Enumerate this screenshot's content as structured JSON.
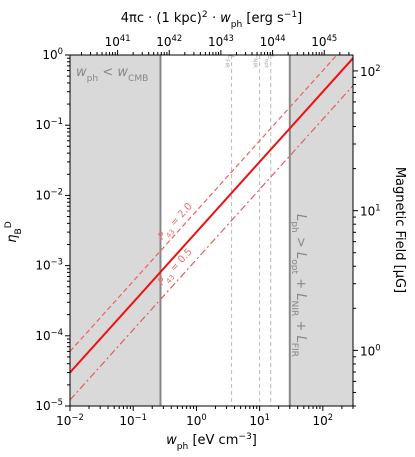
{
  "chart_data": {
    "type": "line",
    "x_axis": {
      "label_main": "w",
      "label_sub": "ph",
      "label_units": " [eV cm",
      "label_exp": "−3",
      "label_close": "]",
      "scale": "log",
      "range": [
        0.01,
        300
      ],
      "ticks": [
        {
          "value": 0.01,
          "base": "10",
          "exp": "−2"
        },
        {
          "value": 0.1,
          "base": "10",
          "exp": "−1"
        },
        {
          "value": 1,
          "base": "10",
          "exp": "0"
        },
        {
          "value": 10,
          "base": "10",
          "exp": "1"
        },
        {
          "value": 100,
          "base": "10",
          "exp": "2"
        }
      ]
    },
    "y_axis": {
      "label_main": "η",
      "label_sub": "B",
      "label_sup": "D",
      "scale": "log",
      "range": [
        1e-05,
        1
      ],
      "ticks": [
        {
          "value": 1e-05,
          "base": "10",
          "exp": "−5"
        },
        {
          "value": 0.0001,
          "base": "10",
          "exp": "−4"
        },
        {
          "value": 0.001,
          "base": "10",
          "exp": "−3"
        },
        {
          "value": 0.01,
          "base": "10",
          "exp": "−2"
        },
        {
          "value": 0.1,
          "base": "10",
          "exp": "−1"
        },
        {
          "value": 1,
          "base": "10",
          "exp": "0"
        }
      ]
    },
    "top_axis": {
      "label_prefix": "4πc · (1 kpc)",
      "label_sq": "2",
      "label_mid": " · w",
      "label_sub": "ph",
      "label_units": " [erg s",
      "label_exp": "−1",
      "label_close": "]",
      "scale": "log",
      "range": [
        1.2e+40,
        3.6e+45
      ],
      "ticks": [
        {
          "value": 1e+41,
          "base": "10",
          "exp": "41"
        },
        {
          "value": 1e+42,
          "base": "10",
          "exp": "42"
        },
        {
          "value": 1e+43,
          "base": "10",
          "exp": "43"
        },
        {
          "value": 1e+44,
          "base": "10",
          "exp": "44"
        },
        {
          "value": 1e+45,
          "base": "10",
          "exp": "45"
        }
      ]
    },
    "right_axis": {
      "label": "Magnetic Field [μG]",
      "scale": "log",
      "range": [
        0.4,
        130
      ],
      "ticks": [
        {
          "value": 1,
          "base": "10",
          "exp": "0"
        },
        {
          "value": 10,
          "base": "10",
          "exp": "1"
        },
        {
          "value": 100,
          "base": "10",
          "exp": "2"
        }
      ]
    },
    "series": [
      {
        "style": "solid",
        "color": "#ee1111",
        "x": [
          0.01,
          300
        ],
        "y": [
          3e-05,
          0.9
        ]
      },
      {
        "style": "dashed",
        "color": "#f06060",
        "x": [
          0.01,
          300
        ],
        "y": [
          6e-05,
          1.8
        ]
      },
      {
        "style": "dashdot",
        "color": "#e06060",
        "x": [
          0.01,
          300
        ],
        "y": [
          1.22e-05,
          0.366
        ]
      }
    ],
    "shaded_regions": [
      {
        "x_range": [
          0.01,
          0.27
        ],
        "color": "#d9d9d9",
        "label_main": "w",
        "label_sub": "ph",
        "label_mid": " < w",
        "label_sub2": "CMB"
      },
      {
        "x_range": [
          30,
          300
        ],
        "color": "#d9d9d9",
        "label_main": "L",
        "label_sub": "ph",
        "label_mid": " > L",
        "label_sub2": "opt",
        "label_mid2": " + L",
        "label_sub3": "NIR",
        "label_mid3": " + L",
        "label_sub4": "FIR"
      }
    ],
    "vertical_lines": [
      {
        "x": 0.27,
        "style": "solid",
        "color": "#888888"
      },
      {
        "x": 3.6,
        "style": "dashed",
        "color": "#bbbbbb",
        "label_main": "L",
        "label_sub": "FIR"
      },
      {
        "x": 10,
        "style": "dashed",
        "color": "#bbbbbb",
        "label_main": "L",
        "label_sub": "NIR"
      },
      {
        "x": 15,
        "style": "dashed",
        "color": "#bbbbbb",
        "label_main": "L",
        "label_sub": "opt"
      },
      {
        "x": 30,
        "style": "solid",
        "color": "#888888"
      }
    ],
    "annotations": [
      {
        "text_main": "P",
        "text_sub": "43",
        "text_rest": " = 2.0",
        "x": 0.5,
        "y": 0.004
      },
      {
        "text_main": "P",
        "text_sub": "43",
        "text_rest": " = 0.5",
        "x": 0.5,
        "y": 0.0009
      }
    ]
  }
}
